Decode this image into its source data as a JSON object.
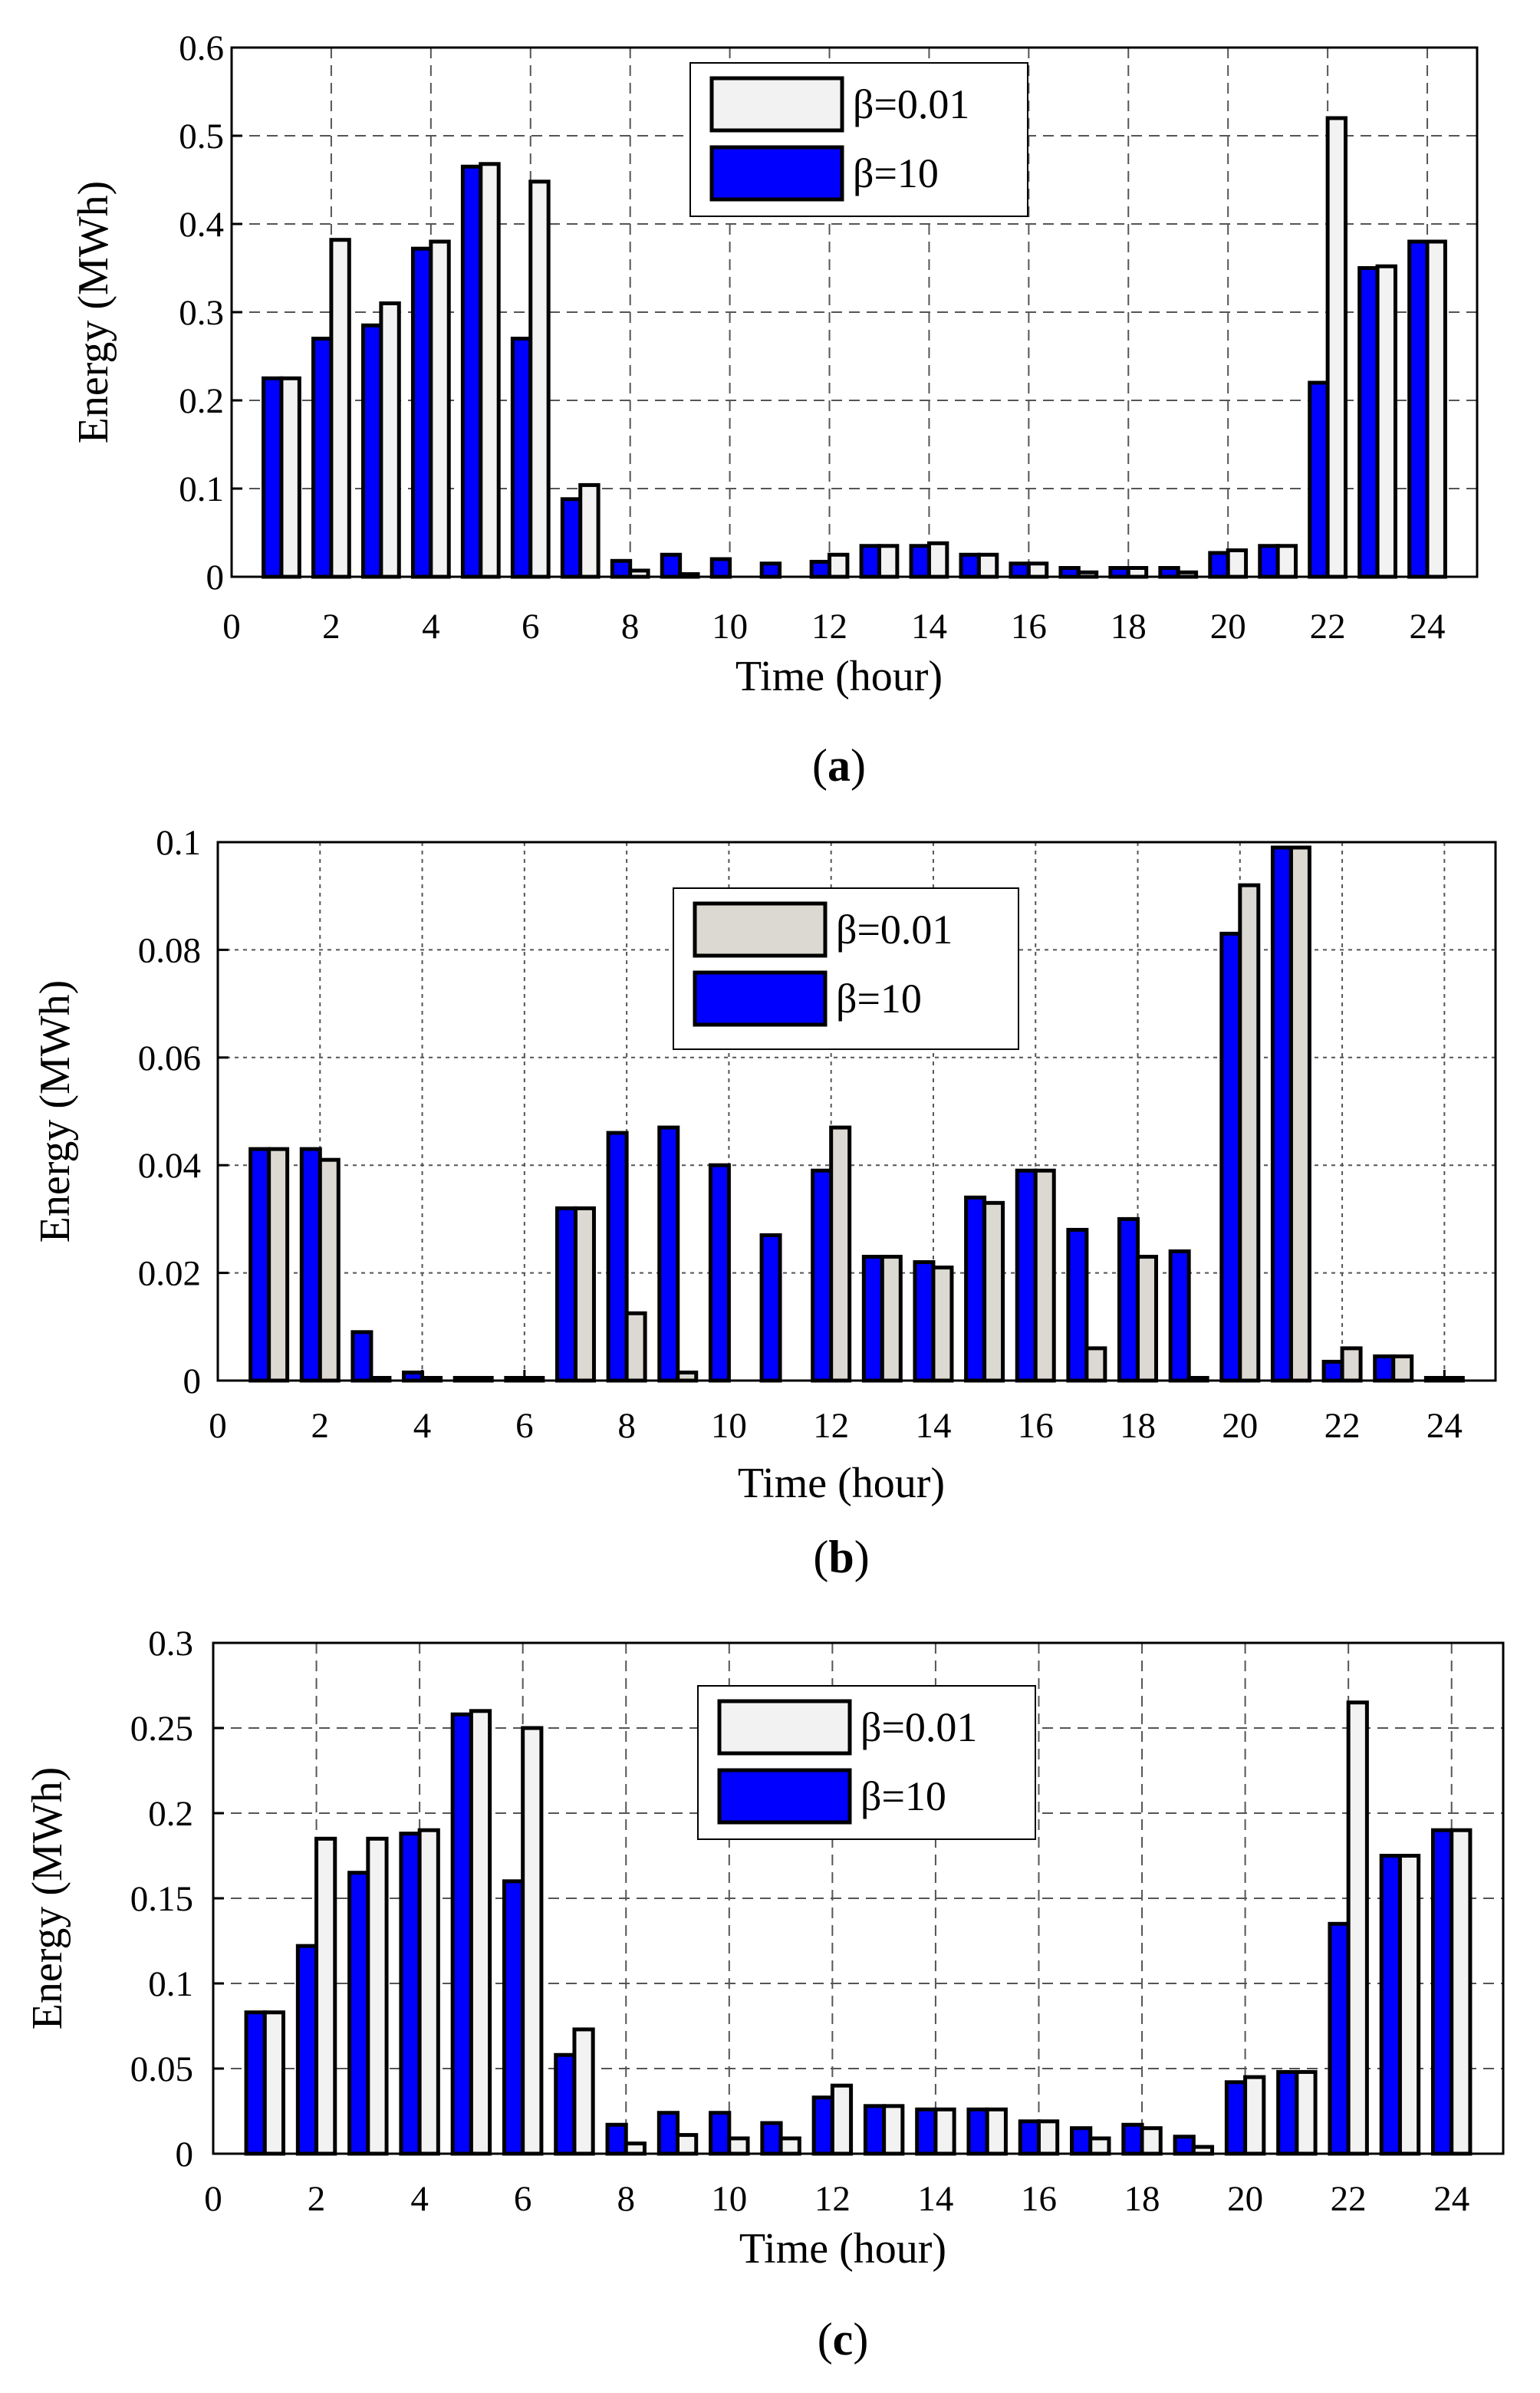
{
  "chart_data": [
    {
      "type": "bar",
      "caption": "a",
      "xlabel": "Time (hour)",
      "ylabel": "Energy (MWh)",
      "xlim": [
        0,
        25
      ],
      "ylim": [
        0,
        0.6
      ],
      "xticks": [
        "0",
        "2",
        "4",
        "6",
        "8",
        "10",
        "12",
        "14",
        "16",
        "18",
        "20",
        "22",
        "24"
      ],
      "yticks": [
        "0",
        "0.1",
        "0.2",
        "0.3",
        "0.4",
        "0.5",
        "0.6"
      ],
      "grid": true,
      "legend_position": "top-center",
      "categories": [
        1,
        2,
        3,
        4,
        5,
        6,
        7,
        8,
        9,
        10,
        11,
        12,
        13,
        14,
        15,
        16,
        17,
        18,
        19,
        20,
        21,
        22,
        23,
        24
      ],
      "series": [
        {
          "name": "β=10",
          "color": "#0000ff",
          "values": [
            0.225,
            0.27,
            0.285,
            0.372,
            0.465,
            0.27,
            0.088,
            0.018,
            0.025,
            0.02,
            0.015,
            0.017,
            0.035,
            0.035,
            0.025,
            0.015,
            0.01,
            0.01,
            0.01,
            0.027,
            0.035,
            0.22,
            0.35,
            0.38
          ]
        },
        {
          "name": "β=0.01",
          "color": "#f2f2f2",
          "values": [
            0.225,
            0.382,
            0.31,
            0.38,
            0.468,
            0.448,
            0.104,
            0.007,
            0.003,
            0.0,
            0.0,
            0.025,
            0.035,
            0.038,
            0.025,
            0.015,
            0.005,
            0.01,
            0.005,
            0.03,
            0.035,
            0.52,
            0.352,
            0.38
          ]
        }
      ]
    },
    {
      "type": "bar",
      "caption": "b",
      "xlabel": "Time (hour)",
      "ylabel": "Energy (MWh)",
      "xlim": [
        0,
        25
      ],
      "ylim": [
        0,
        0.1
      ],
      "xticks": [
        "0",
        "2",
        "4",
        "6",
        "8",
        "10",
        "12",
        "14",
        "16",
        "18",
        "20",
        "22",
        "24"
      ],
      "yticks": [
        "0",
        "0.02",
        "0.04",
        "0.06",
        "0.08",
        "0.1"
      ],
      "grid": true,
      "legend_position": "top-center",
      "categories": [
        1,
        2,
        3,
        4,
        5,
        6,
        7,
        8,
        9,
        10,
        11,
        12,
        13,
        14,
        15,
        16,
        17,
        18,
        19,
        20,
        21,
        22,
        23,
        24
      ],
      "series": [
        {
          "name": "β=10",
          "color": "#0000ff",
          "values": [
            0.043,
            0.043,
            0.009,
            0.0015,
            0.0005,
            0.0005,
            0.032,
            0.046,
            0.047,
            0.04,
            0.027,
            0.039,
            0.023,
            0.022,
            0.034,
            0.039,
            0.028,
            0.03,
            0.024,
            0.083,
            0.099,
            0.0035,
            0.0045,
            0.0005
          ]
        },
        {
          "name": "β=0.01",
          "color": "#dcd8d2",
          "values": [
            0.043,
            0.041,
            0.0005,
            0.0005,
            0.0005,
            0.0005,
            0.032,
            0.0125,
            0.0015,
            0.0,
            0.0,
            0.047,
            0.023,
            0.021,
            0.033,
            0.039,
            0.006,
            0.023,
            0.0005,
            0.092,
            0.099,
            0.006,
            0.0045,
            0.0005
          ]
        }
      ]
    },
    {
      "type": "bar",
      "caption": "c",
      "xlabel": "Time (hour)",
      "ylabel": "Energy (MWh)",
      "xlim": [
        0,
        25
      ],
      "ylim": [
        0,
        0.3
      ],
      "xticks": [
        "0",
        "2",
        "4",
        "6",
        "8",
        "10",
        "12",
        "14",
        "16",
        "18",
        "20",
        "22",
        "24"
      ],
      "yticks": [
        "0",
        "0.05",
        "0.1",
        "0.15",
        "0.2",
        "0.25",
        "0.3"
      ],
      "grid": true,
      "legend_position": "top-center",
      "categories": [
        1,
        2,
        3,
        4,
        5,
        6,
        7,
        8,
        9,
        10,
        11,
        12,
        13,
        14,
        15,
        16,
        17,
        18,
        19,
        20,
        21,
        22,
        23,
        24
      ],
      "series": [
        {
          "name": "β=10",
          "color": "#0000ff",
          "values": [
            0.083,
            0.122,
            0.165,
            0.188,
            0.258,
            0.16,
            0.058,
            0.017,
            0.024,
            0.024,
            0.018,
            0.033,
            0.028,
            0.026,
            0.026,
            0.019,
            0.015,
            0.017,
            0.01,
            0.042,
            0.048,
            0.135,
            0.175,
            0.19
          ]
        },
        {
          "name": "β=0.01",
          "color": "#f2f2f2",
          "values": [
            0.083,
            0.185,
            0.185,
            0.19,
            0.26,
            0.25,
            0.073,
            0.006,
            0.011,
            0.009,
            0.009,
            0.04,
            0.028,
            0.026,
            0.026,
            0.019,
            0.009,
            0.015,
            0.004,
            0.045,
            0.048,
            0.265,
            0.175,
            0.19
          ]
        }
      ]
    }
  ]
}
